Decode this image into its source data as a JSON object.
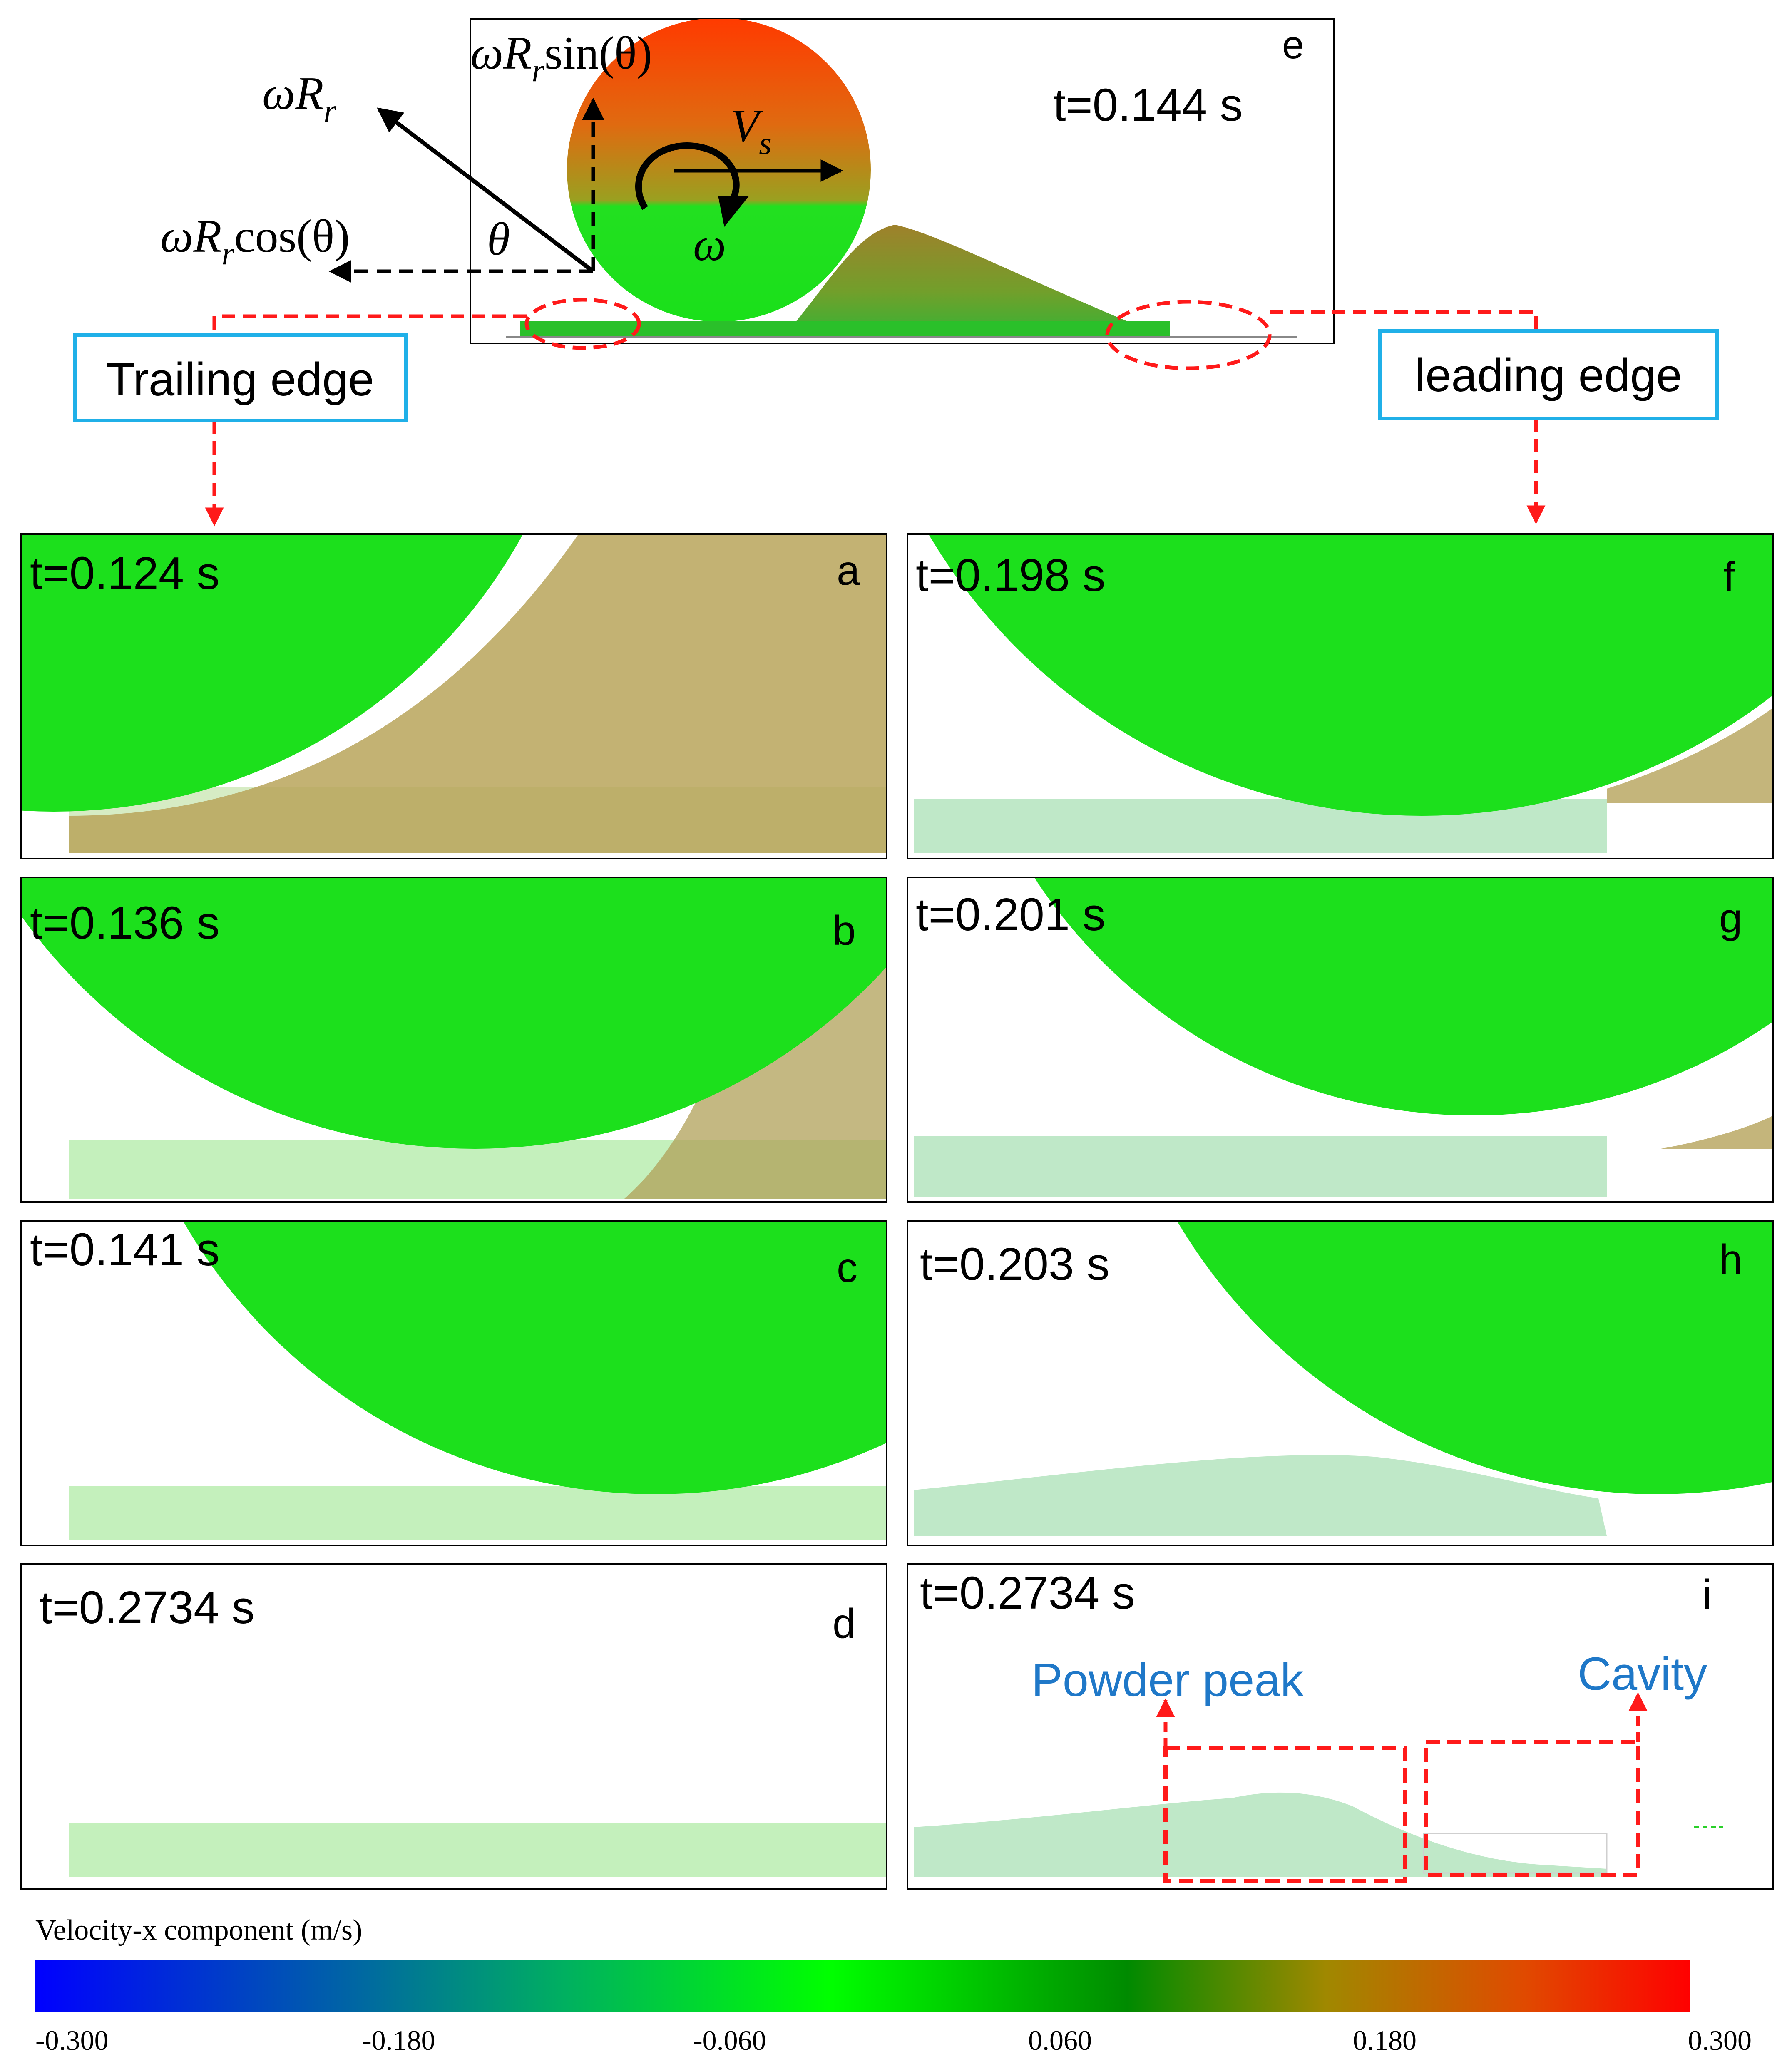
{
  "overview": {
    "label": "e",
    "time": "t=0.144 s",
    "velocity_radial": "ωR",
    "velocity_radial_sub": "r",
    "velocity_sin_prefix": "ωR",
    "velocity_sin_sub": "r",
    "velocity_sin_suffix": "sin(θ)",
    "velocity_cos_prefix": "ωR",
    "velocity_cos_sub": "r",
    "velocity_cos_suffix": "cos(θ)",
    "theta": "θ",
    "omega": "ω",
    "vs_main": "V",
    "vs_sub": "s"
  },
  "callouts": {
    "trailing": "Trailing edge",
    "leading": "leading edge"
  },
  "panels": [
    {
      "label": "a",
      "time": "t=0.124 s"
    },
    {
      "label": "b",
      "time": "t=0.136 s"
    },
    {
      "label": "c",
      "time": "t=0.141 s"
    },
    {
      "label": "d",
      "time": "t=0.2734 s"
    },
    {
      "label": "f",
      "time": "t=0.198 s"
    },
    {
      "label": "g",
      "time": "t=0.201 s"
    },
    {
      "label": "h",
      "time": "t=0.203 s"
    },
    {
      "label": "i",
      "time": "t=0.2734 s"
    }
  ],
  "annotations": {
    "powder_peak": "Powder peak",
    "cavity": "Cavity"
  },
  "colorbar": {
    "title": "Velocity-x component (m/s)",
    "ticks": [
      "-0.300",
      "-0.180",
      "-0.060",
      "0.060",
      "0.180",
      "0.300"
    ],
    "colors": [
      "#0000ff",
      "#00aa66",
      "#00ff00",
      "#008a00",
      "#b08a00",
      "#ff0000"
    ]
  }
}
